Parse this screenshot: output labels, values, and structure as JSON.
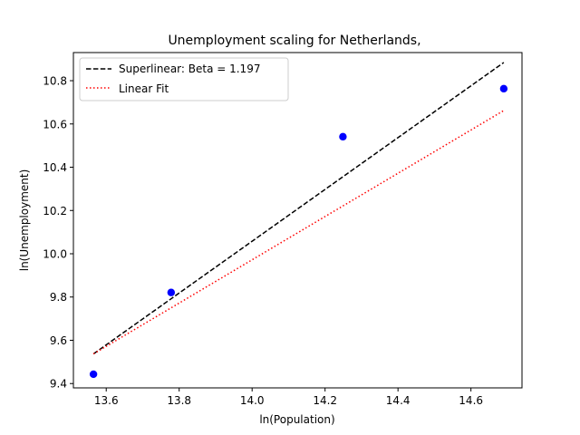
{
  "chart_data": {
    "type": "scatter",
    "title": "Unemployment scaling for Netherlands,",
    "xlabel": "ln(Population)",
    "ylabel": "ln(Unemployment)",
    "xlim": [
      13.51,
      14.74
    ],
    "ylim": [
      9.38,
      10.93
    ],
    "xticks": [
      13.6,
      13.8,
      14.0,
      14.2,
      14.4,
      14.6
    ],
    "xtick_labels": [
      "13.6",
      "13.8",
      "14.0",
      "14.2",
      "14.4",
      "14.6"
    ],
    "yticks": [
      9.4,
      9.6,
      9.8,
      10.0,
      10.2,
      10.4,
      10.6,
      10.8
    ],
    "ytick_labels": [
      "9.4",
      "9.6",
      "9.8",
      "10.0",
      "10.2",
      "10.4",
      "10.6",
      "10.8"
    ],
    "grid": false,
    "legend_position": "top-left",
    "series": [
      {
        "name": "",
        "kind": "scatter",
        "color": "#0000ff",
        "x": [
          13.565,
          13.778,
          14.249,
          14.69
        ],
        "y": [
          9.443,
          9.821,
          10.541,
          10.763
        ]
      },
      {
        "name": "Superlinear: Beta = 1.197",
        "kind": "line",
        "style": "dashed",
        "color": "#000000",
        "x": [
          13.565,
          14.69
        ],
        "y": [
          9.537,
          10.884
        ]
      },
      {
        "name": "Linear Fit",
        "kind": "line",
        "style": "dotted",
        "color": "#ff0000",
        "x": [
          13.565,
          14.69
        ],
        "y": [
          9.537,
          10.662
        ]
      }
    ]
  }
}
